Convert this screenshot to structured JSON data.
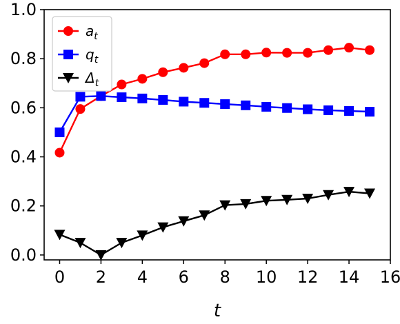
{
  "chart_data": {
    "type": "line",
    "xlabel": "t",
    "ylabel": "",
    "xlim": [
      -0.75,
      16
    ],
    "ylim": [
      -0.02,
      1.0
    ],
    "xticks": [
      0,
      2,
      4,
      6,
      8,
      10,
      12,
      14,
      16
    ],
    "yticks": [
      0.0,
      0.2,
      0.4,
      0.6,
      0.8,
      1.0
    ],
    "x": [
      0,
      1,
      2,
      3,
      4,
      5,
      6,
      7,
      8,
      9,
      10,
      11,
      12,
      13,
      14,
      15
    ],
    "legend_position": "top-left",
    "series": [
      {
        "name_base": "a",
        "name_sub": "t",
        "color": "#ff0000",
        "marker": "circle",
        "values": [
          0.417,
          0.595,
          0.648,
          0.695,
          0.718,
          0.745,
          0.763,
          0.782,
          0.818,
          0.818,
          0.825,
          0.824,
          0.824,
          0.835,
          0.845,
          0.835
        ]
      },
      {
        "name_base": "q",
        "name_sub": "t",
        "color": "#0000ff",
        "marker": "square",
        "values": [
          0.5,
          0.645,
          0.648,
          0.643,
          0.638,
          0.632,
          0.625,
          0.62,
          0.615,
          0.61,
          0.604,
          0.599,
          0.594,
          0.59,
          0.587,
          0.584
        ]
      },
      {
        "name_base": "Δ",
        "name_sub": "t",
        "color": "#000000",
        "marker": "triangle-down",
        "values": [
          0.083,
          0.05,
          0.0,
          0.05,
          0.08,
          0.113,
          0.138,
          0.162,
          0.203,
          0.208,
          0.221,
          0.225,
          0.23,
          0.245,
          0.258,
          0.251
        ]
      }
    ]
  }
}
